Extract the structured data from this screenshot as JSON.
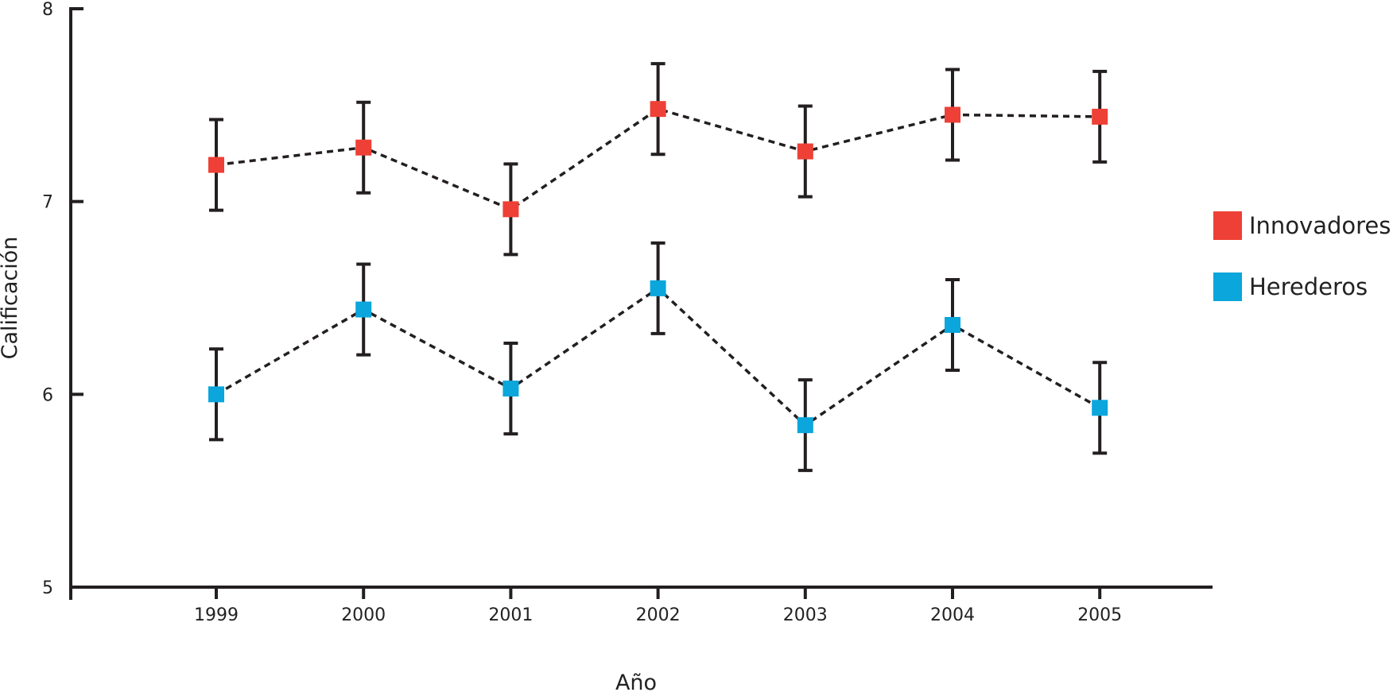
{
  "chart_data": {
    "type": "line",
    "xlabel": "Año",
    "ylabel": "Calificación",
    "categories": [
      "1999",
      "2000",
      "2001",
      "2002",
      "2003",
      "2004",
      "2005"
    ],
    "ylim": [
      5,
      8
    ],
    "yticks": [
      5,
      6,
      7,
      8
    ],
    "grid": false,
    "legend_position": "right",
    "series": [
      {
        "name": "Innovadores",
        "color": "#ee4036",
        "values": [
          7.19,
          7.28,
          6.96,
          7.48,
          7.26,
          7.45,
          7.44
        ],
        "error": [
          0.235,
          0.235,
          0.235,
          0.235,
          0.235,
          0.235,
          0.235
        ]
      },
      {
        "name": "Herederos",
        "color": "#0aa6dc",
        "values": [
          6.0,
          6.44,
          6.03,
          6.55,
          5.84,
          6.36,
          5.93
        ],
        "error": [
          0.235,
          0.235,
          0.235,
          0.235,
          0.235,
          0.235,
          0.235
        ]
      }
    ],
    "line_style": "dashed",
    "marker": "square",
    "axis_color": "#231f20"
  }
}
